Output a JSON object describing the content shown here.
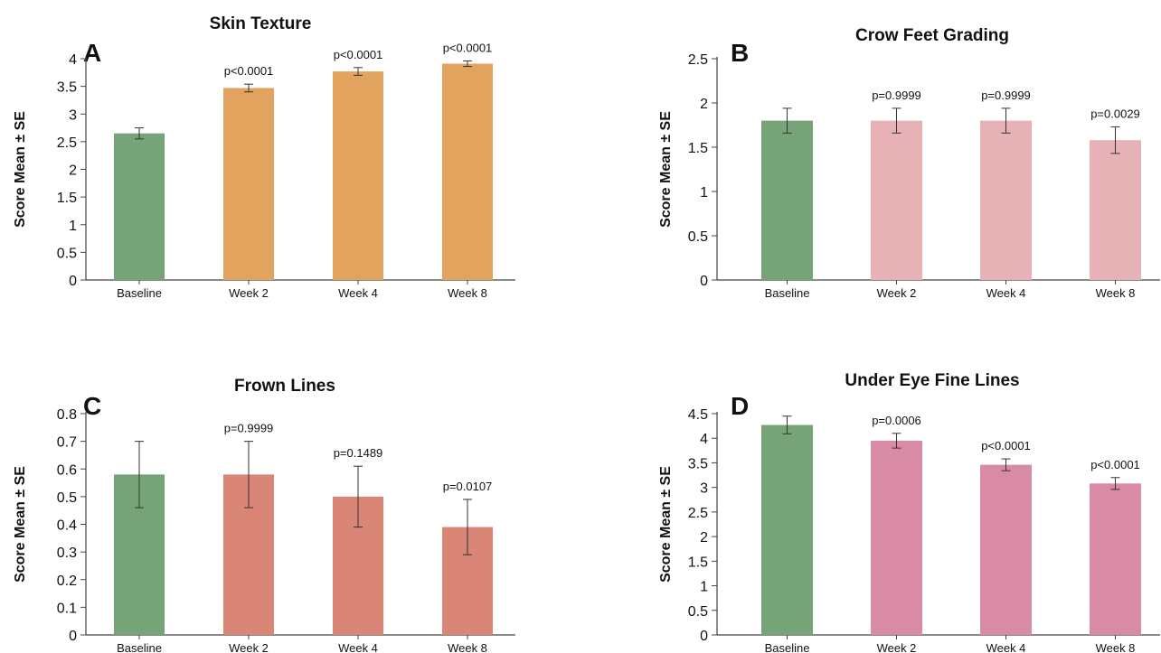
{
  "chart_data": [
    {
      "panel": "A",
      "type": "bar",
      "title": "Skin Texture",
      "ylabel": "Score Mean ± SE",
      "categories": [
        "Baseline",
        "Week 2",
        "Week 4",
        "Week 8"
      ],
      "values": [
        2.65,
        3.47,
        3.77,
        3.91
      ],
      "errors": [
        0.1,
        0.07,
        0.07,
        0.05
      ],
      "p_labels": [
        "",
        "p<0.0001",
        "p<0.0001",
        "p<0.0001"
      ],
      "colors": [
        "#76a478",
        "#e1a35d",
        "#e1a35d",
        "#e1a35d"
      ],
      "ylim": [
        0,
        4
      ],
      "yticks": [
        "0",
        "0.5",
        "1",
        "1.5",
        "2",
        "2.5",
        "3",
        "3.5",
        "4"
      ]
    },
    {
      "panel": "B",
      "type": "bar",
      "title": "Crow Feet Grading",
      "ylabel": "Score Mean ± SE",
      "categories": [
        "Baseline",
        "Week 2",
        "Week 4",
        "Week 8"
      ],
      "values": [
        1.8,
        1.8,
        1.8,
        1.58
      ],
      "errors": [
        0.14,
        0.14,
        0.14,
        0.15
      ],
      "p_labels": [
        "",
        "p=0.9999",
        "p=0.9999",
        "p=0.0029"
      ],
      "colors": [
        "#76a478",
        "#e6b2b5",
        "#e6b2b5",
        "#e6b2b5"
      ],
      "ylim": [
        0,
        2.5
      ],
      "yticks": [
        "0",
        "0.5",
        "1",
        "1.5",
        "2",
        "2.5"
      ]
    },
    {
      "panel": "C",
      "type": "bar",
      "title": "Frown Lines",
      "ylabel": "Score Mean ± SE",
      "categories": [
        "Baseline",
        "Week 2",
        "Week 4",
        "Week 8"
      ],
      "values": [
        0.58,
        0.58,
        0.5,
        0.39
      ],
      "errors": [
        0.12,
        0.12,
        0.11,
        0.1
      ],
      "p_labels": [
        "",
        "p=0.9999",
        "p=0.1489",
        "p=0.0107"
      ],
      "colors": [
        "#76a478",
        "#d98677",
        "#d98677",
        "#d98677"
      ],
      "ylim": [
        0,
        0.8
      ],
      "yticks": [
        "0",
        "0.1",
        "0.2",
        "0.3",
        "0.4",
        "0.5",
        "0.6",
        "0.7",
        "0.8"
      ]
    },
    {
      "panel": "D",
      "type": "bar",
      "title": "Under Eye Fine Lines",
      "ylabel": "Score Mean ± SE",
      "categories": [
        "Baseline",
        "Week 2",
        "Week 4",
        "Week 8"
      ],
      "values": [
        4.27,
        3.95,
        3.46,
        3.08
      ],
      "errors": [
        0.18,
        0.15,
        0.12,
        0.12
      ],
      "p_labels": [
        "",
        "p=0.0006",
        "p<0.0001",
        "p<0.0001"
      ],
      "colors": [
        "#76a478",
        "#d98aa4",
        "#d98aa4",
        "#d98aa4"
      ],
      "ylim": [
        0,
        4.5
      ],
      "yticks": [
        "0",
        "0.5",
        "1",
        "1.5",
        "2",
        "2.5",
        "3",
        "3.5",
        "4",
        "4.5"
      ]
    }
  ]
}
